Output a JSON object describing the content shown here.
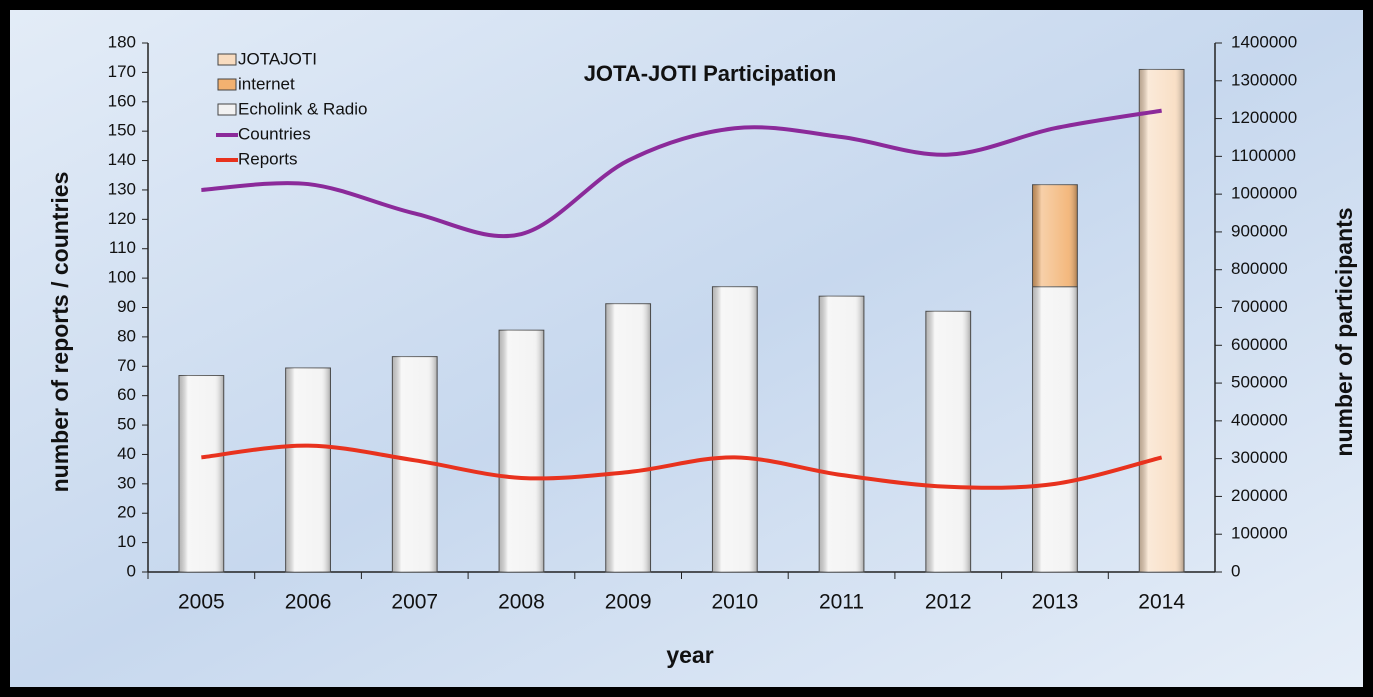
{
  "chart_data": {
    "type": "bar",
    "title": "JOTA-JOTI Participation",
    "xlabel": "year",
    "ylabel": "number of reports / countries",
    "y2label": "number of participants",
    "categories": [
      "2005",
      "2006",
      "2007",
      "2008",
      "2009",
      "2010",
      "2011",
      "2012",
      "2013",
      "2014"
    ],
    "series": [
      {
        "name": "JOTAJOTI",
        "type": "bar",
        "axis": "y2",
        "color": "#f8dcc0",
        "values": [
          null,
          null,
          null,
          null,
          null,
          null,
          null,
          null,
          null,
          1330000
        ]
      },
      {
        "name": "internet",
        "type": "bar",
        "axis": "y2",
        "color": "#f2b170",
        "values": [
          null,
          null,
          null,
          null,
          null,
          null,
          null,
          null,
          270000,
          null
        ]
      },
      {
        "name": "Echolink & Radio",
        "type": "bar",
        "axis": "y2",
        "color": "#f2f2f2",
        "values": [
          520000,
          540000,
          570000,
          640000,
          710000,
          755000,
          730000,
          690000,
          755000,
          null
        ]
      },
      {
        "name": "Countries",
        "type": "line",
        "axis": "y",
        "color": "#8b2a9a",
        "values": [
          130,
          132,
          122,
          115,
          140,
          151,
          148,
          142,
          151,
          157
        ]
      },
      {
        "name": "Reports",
        "type": "line",
        "axis": "y",
        "color": "#e8321e",
        "values": [
          39,
          43,
          38,
          32,
          34,
          39,
          33,
          29,
          30,
          39
        ]
      }
    ],
    "stack_order": [
      2,
      1,
      0
    ],
    "ylim": [
      0,
      180
    ],
    "yticks": [
      0,
      10,
      20,
      30,
      40,
      50,
      60,
      70,
      80,
      90,
      100,
      110,
      120,
      130,
      140,
      150,
      160,
      170,
      180
    ],
    "y2lim": [
      0,
      1400000
    ],
    "y2ticks": [
      0,
      100000,
      200000,
      300000,
      400000,
      500000,
      600000,
      700000,
      800000,
      900000,
      1000000,
      1100000,
      1200000,
      1300000,
      1400000
    ]
  }
}
